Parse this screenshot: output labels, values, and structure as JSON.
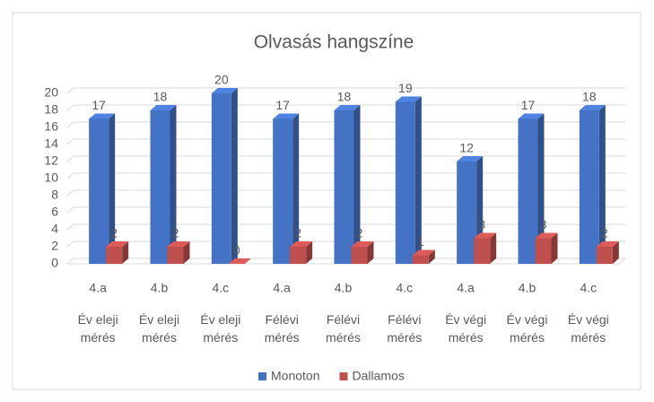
{
  "chart_data": {
    "type": "bar3d",
    "title": "Olvasás hangszíne",
    "categories": [
      "4.a",
      "4.b",
      "4.c",
      "4.a",
      "4.b",
      "4.c",
      "4.a",
      "4.b",
      "4.c"
    ],
    "category_groups": [
      "Év eleji mérés",
      "Év eleji mérés",
      "Év eleji mérés",
      "Félévi mérés",
      "Félévi mérés",
      "Félévi mérés",
      "Év végi mérés",
      "Év végi mérés",
      "Év végi mérés"
    ],
    "series": [
      {
        "name": "Monoton",
        "color": "#4472c4",
        "values": [
          17,
          18,
          20,
          17,
          18,
          19,
          12,
          17,
          18
        ]
      },
      {
        "name": "Dallamos",
        "color": "#c0504d",
        "values": [
          2,
          2,
          0,
          2,
          2,
          1,
          3,
          3,
          2
        ]
      }
    ],
    "ylim": [
      0,
      20
    ],
    "yticks": [
      0,
      2,
      4,
      6,
      8,
      10,
      12,
      14,
      16,
      18,
      20
    ],
    "grid": true,
    "legend": "bottom"
  }
}
